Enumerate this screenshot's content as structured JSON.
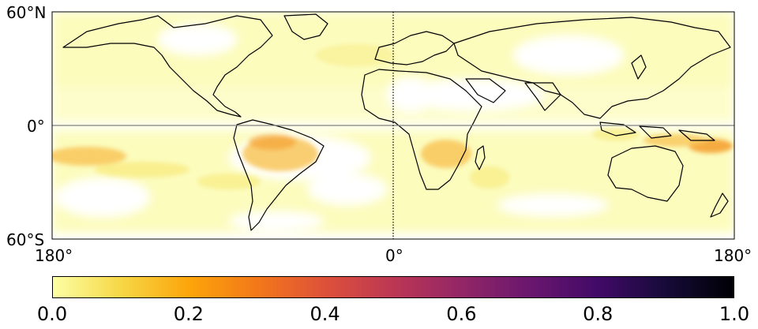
{
  "map": {
    "projection": "equirectangular",
    "extent_lon": [
      -180,
      180
    ],
    "extent_lat": [
      -60,
      60
    ],
    "lat_labels": [
      "60°N",
      "0°",
      "60°S"
    ],
    "lon_labels": [
      "180°",
      "0°",
      "180°"
    ],
    "reference_lines": [
      "equator",
      "prime-meridian"
    ],
    "field_colors": [
      "#fcfcb6",
      "#f8ed8a",
      "#f8c55a",
      "#f59c2c",
      "#ef7a1a"
    ]
  },
  "colorbar": {
    "colormap": "inferno_r",
    "range": [
      0.0,
      1.0
    ],
    "tick_labels": [
      "0.0",
      "0.2",
      "0.4",
      "0.6",
      "0.8",
      "1.0"
    ],
    "ticks": [
      0.0,
      0.2,
      0.4,
      0.6,
      0.8,
      1.0
    ],
    "gradient": [
      "#fcffa4",
      "#f6d746",
      "#fca50a",
      "#f37819",
      "#dd513a",
      "#bc3754",
      "#932667",
      "#6a176e",
      "#420a68",
      "#160b39",
      "#000004"
    ]
  }
}
